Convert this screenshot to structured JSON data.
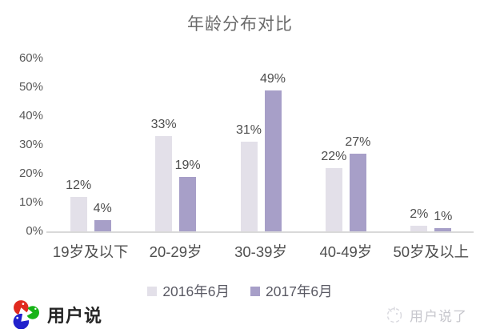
{
  "title": "年龄分布对比",
  "chart_data": {
    "type": "bar",
    "title": "年龄分布对比",
    "categories": [
      "19岁及以下",
      "20-29岁",
      "30-39岁",
      "40-49岁",
      "50岁及以上"
    ],
    "series": [
      {
        "name": "2016年6月",
        "color": "#e3e0e9",
        "values": [
          12,
          33,
          31,
          22,
          2
        ]
      },
      {
        "name": "2017年6月",
        "color": "#a79fc8",
        "values": [
          4,
          19,
          49,
          27,
          1
        ]
      }
    ],
    "value_suffix": "%",
    "data_labels": true,
    "grid": false,
    "legend_position": "bottom",
    "y_axis": {
      "min": 0,
      "max": 60,
      "step": 10,
      "tick_labels": [
        "0%",
        "10%",
        "20%",
        "30%",
        "40%",
        "50%",
        "60%"
      ]
    }
  },
  "footer": {
    "logo_text": "用户说",
    "watermark_text": "用户说了"
  },
  "colors": {
    "axis_text": "#595959",
    "value_label_text": "#4d4d4d",
    "baseline": "#d9d9d9",
    "title_text": "#6a6a6a",
    "watermark_text": "#c7c7cd",
    "logo_red": "#e02a1f",
    "logo_green": "#17b317",
    "logo_blue": "#2121cc"
  }
}
